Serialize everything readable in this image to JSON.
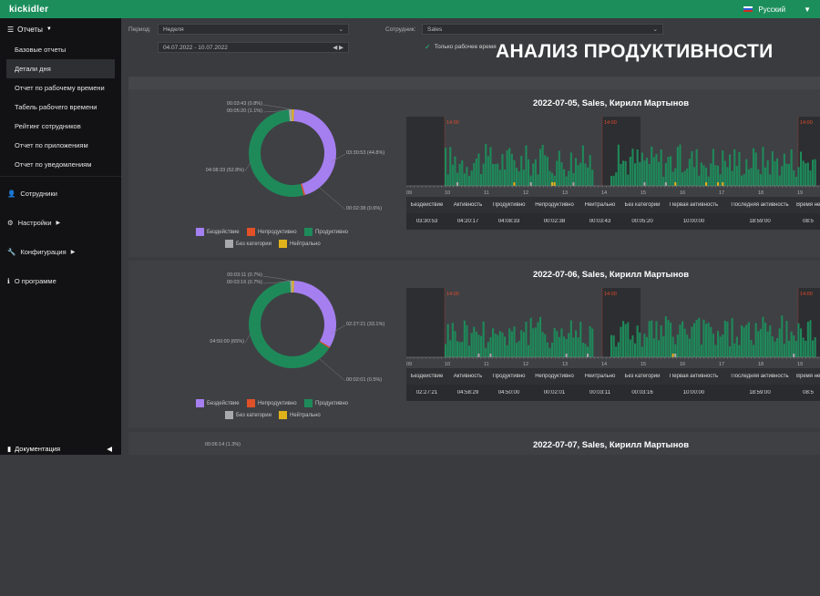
{
  "topbar": {
    "logo": "kickidler",
    "language": "Русский"
  },
  "sidebar": {
    "reports_label": "Отчеты",
    "report_items": [
      "Базовые отчеты",
      "Детали дня",
      "Отчет по рабочему времени",
      "Табель рабочего времени",
      "Рейтинг сотрудников",
      "Отчет по приложениям",
      "Отчет по уведомлениям"
    ],
    "active_index": 1,
    "sections": [
      "Сотрудники",
      "Настройки",
      "Конфигурация",
      "О программе"
    ],
    "footer": "Документация"
  },
  "filters": {
    "period_label": "Период:",
    "period_value": "Неделя",
    "date_range": "04.07.2022 - 10.07.2022",
    "employee_label": "Сотрудник:",
    "employee_value": "Sales",
    "only_work_time": "Только рабочее время"
  },
  "overlay_title": "АНАЛИЗ ПРОДУКТИВНОСТИ",
  "legend": {
    "idle": "Бездействие",
    "unproductive": "Непродуктивно",
    "productive": "Продуктивно",
    "uncategorized": "Без категории",
    "neutral": "Нейтрально"
  },
  "colors": {
    "idle": "#a57ff0",
    "unproductive": "#e0512a",
    "productive": "#1e8a5a",
    "uncategorized": "#a7a9ac",
    "neutral": "#e0b21a"
  },
  "stats_headers": [
    "Бездействие",
    "Активность",
    "Продуктивно",
    "Непродуктивно",
    "Нейтрально",
    "Без категории",
    "Первая активность",
    "Последняя активность",
    "Время не"
  ],
  "timeline_ticks": [
    "09",
    "10",
    "11",
    "12",
    "13",
    "14",
    "15",
    "16",
    "17",
    "18",
    "19"
  ],
  "timeline_marker": "14:00",
  "days": [
    {
      "title": "2022-07-05, Sales, Кирилл Мартынов",
      "donut_shares": {
        "idle": 44.8,
        "unproductive": 0.6,
        "productive": 52.8,
        "uncategorized": 1.1,
        "neutral": 0.8
      },
      "labels": {
        "top1": "00:03:43 (0.8%)",
        "top2": "00:05:20 (1.1%)",
        "right": "03:30:53 (44.8%)",
        "left": "04:08:33 (52.8%)",
        "bottom": "00:02:38 (0.6%)"
      },
      "stats": [
        "03:30:53",
        "04:20:17",
        "04:08:33",
        "00:02:38",
        "00:03:43",
        "00:05:20",
        "10:00:00",
        "18:59:00",
        "08:5"
      ]
    },
    {
      "title": "2022-07-06, Sales, Кирилл Мартынов",
      "donut_shares": {
        "idle": 33.1,
        "unproductive": 0.5,
        "productive": 65,
        "uncategorized": 0.7,
        "neutral": 0.7
      },
      "labels": {
        "top1": "00:03:11 (0.7%)",
        "top2": "00:03:16 (0.7%)",
        "right": "02:27:21 (33.1%)",
        "left": "04:50:00 (65%)",
        "bottom": "00:02:01 (0.5%)"
      },
      "stats": [
        "02:27:21",
        "04:58:29",
        "04:50:00",
        "00:02:01",
        "00:03:11",
        "00:03:16",
        "10:00:00",
        "18:59:00",
        "08:5"
      ]
    },
    {
      "title": "2022-07-07, Sales, Кирилл Мартынов",
      "labels": {
        "top1": "00:06:14 (1.3%)"
      }
    }
  ]
}
